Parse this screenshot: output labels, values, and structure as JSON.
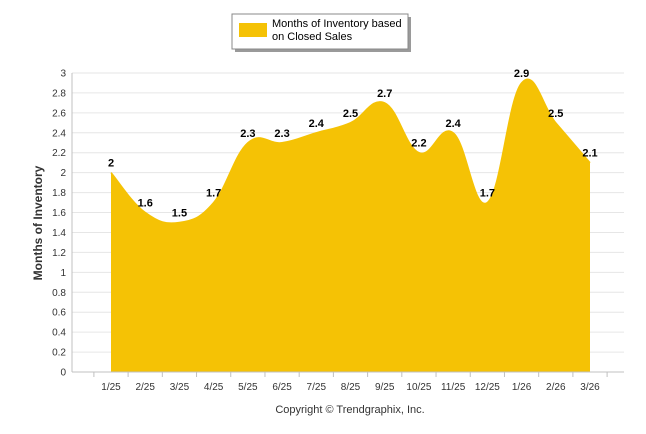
{
  "chart_data": {
    "type": "area",
    "title": "",
    "series": [
      {
        "name": "Months of Inventory based on Closed Sales",
        "legend_lines": [
          "Months of Inventory based",
          "on Closed Sales"
        ],
        "color": "#F5C205",
        "values": [
          2,
          1.6,
          1.5,
          1.7,
          2.3,
          2.3,
          2.4,
          2.5,
          2.7,
          2.2,
          2.4,
          1.7,
          2.9,
          2.5,
          2.1
        ],
        "data_labels": [
          "2",
          "1.6",
          "1.5",
          "1.7",
          "2.3",
          "2.3",
          "2.4",
          "2.5",
          "2.7",
          "2.2",
          "2.4",
          "1.7",
          "2.9",
          "2.5",
          "2.1"
        ]
      }
    ],
    "categories": [
      "1/25",
      "2/25",
      "3/25",
      "4/25",
      "5/25",
      "6/25",
      "7/25",
      "8/25",
      "9/25",
      "10/25",
      "11/25",
      "12/25",
      "1/26",
      "2/26",
      "3/26"
    ],
    "xlabel": "",
    "ylabel": "Months of Inventory",
    "ylim": [
      0,
      3
    ],
    "yticks": [
      0,
      0.2,
      0.4,
      0.6,
      0.8,
      1,
      1.2,
      1.4,
      1.6,
      1.8,
      2,
      2.2,
      2.4,
      2.6,
      2.8,
      3
    ],
    "ytick_labels": [
      "0",
      "0.2",
      "0.4",
      "0.6",
      "0.8",
      "1",
      "1.2",
      "1.4",
      "1.6",
      "1.8",
      "2",
      "2.2",
      "2.4",
      "2.6",
      "2.8",
      "3"
    ],
    "grid": true,
    "legend_position": "top-center",
    "smooth": true
  },
  "footer": {
    "credit": "Copyright © Trendgraphix, Inc."
  },
  "colors": {
    "area": "#F5C205",
    "grid": "#E6E6E6",
    "axis": "#C0C0C0"
  }
}
